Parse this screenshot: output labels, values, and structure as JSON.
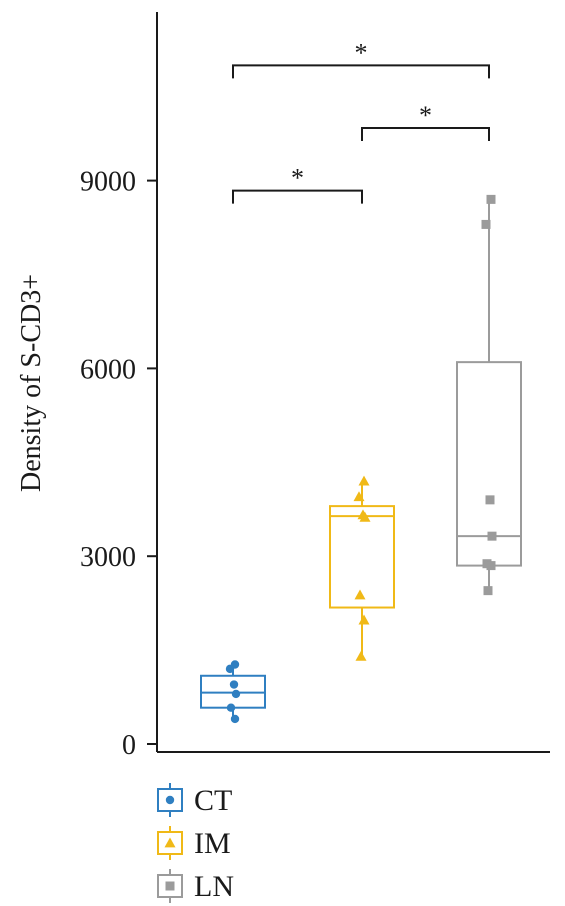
{
  "chart_data": {
    "type": "box",
    "ylabel": "Density of S-CD3+",
    "xlabel": "",
    "ylim": [
      0,
      10000
    ],
    "yticks": [
      0,
      3000,
      6000,
      9000
    ],
    "ytick_labels": [
      "0",
      "3000",
      "6000",
      "9000"
    ],
    "legend_position": "bottom",
    "series": [
      {
        "name": "CT",
        "color": "#2f7fc1",
        "marker": "circle",
        "box": {
          "whisker_low": 400,
          "q1": 580,
          "median": 820,
          "q3": 1090,
          "whisker_high": 1270
        },
        "points": [
          1270,
          1200,
          950,
          800,
          580,
          400
        ]
      },
      {
        "name": "IM",
        "color": "#f0b917",
        "marker": "triangle",
        "box": {
          "whisker_low": 1400,
          "q1": 2180,
          "median": 3640,
          "q3": 3800,
          "whisker_high": 4200
        },
        "points": [
          4200,
          3950,
          3660,
          3620,
          2380,
          1980,
          1400
        ]
      },
      {
        "name": "LN",
        "color": "#9b9b9b",
        "marker": "square",
        "box": {
          "whisker_low": 2450,
          "q1": 2850,
          "median": 3320,
          "q3": 6100,
          "whisker_high": 8700
        },
        "points": [
          8700,
          8300,
          3900,
          3320,
          2880,
          2850,
          2450
        ]
      }
    ],
    "significance": [
      {
        "from": 0,
        "to": 2,
        "label": "*",
        "y": 11000
      },
      {
        "from": 1,
        "to": 2,
        "label": "*",
        "y": 10000
      },
      {
        "from": 0,
        "to": 1,
        "label": "*",
        "y": 9000
      }
    ]
  }
}
